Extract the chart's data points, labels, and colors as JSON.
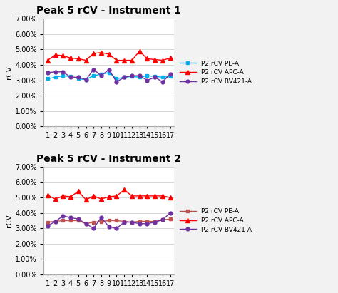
{
  "title1": "Peak 5 rCV - Instrument 1",
  "title2": "Peak 5 rCV - Instrument 2",
  "ylabel": "rCV",
  "x": [
    1,
    2,
    3,
    4,
    5,
    6,
    7,
    8,
    9,
    10,
    11,
    12,
    13,
    14,
    15,
    16,
    17
  ],
  "instrument1": {
    "pe": [
      3.1,
      3.2,
      3.3,
      3.25,
      3.1,
      3.05,
      3.3,
      3.4,
      3.5,
      3.1,
      3.2,
      3.25,
      3.2,
      3.3,
      3.25,
      3.2,
      3.25
    ],
    "apc": [
      4.3,
      4.65,
      4.6,
      4.45,
      4.4,
      4.3,
      4.75,
      4.8,
      4.7,
      4.3,
      4.3,
      4.3,
      4.9,
      4.4,
      4.35,
      4.3,
      4.45
    ],
    "bv421": [
      3.5,
      3.55,
      3.55,
      3.2,
      3.2,
      3.05,
      3.7,
      3.3,
      3.7,
      2.9,
      3.2,
      3.3,
      3.3,
      3.0,
      3.2,
      2.9,
      3.4
    ]
  },
  "instrument2": {
    "pe": [
      3.4,
      3.45,
      3.5,
      3.5,
      3.5,
      3.3,
      3.4,
      3.45,
      3.5,
      3.5,
      3.45,
      3.4,
      3.45,
      3.45,
      3.45,
      3.55,
      3.6
    ],
    "apc": [
      5.15,
      4.9,
      5.1,
      5.05,
      5.4,
      4.85,
      5.1,
      4.9,
      5.05,
      5.1,
      5.5,
      5.1,
      5.1,
      5.1,
      5.1,
      5.1,
      5.0
    ],
    "bv421": [
      3.15,
      3.45,
      3.8,
      3.7,
      3.6,
      3.3,
      3.0,
      3.7,
      3.1,
      3.0,
      3.4,
      3.4,
      3.3,
      3.3,
      3.4,
      3.55,
      4.0
    ]
  },
  "color_pe1": "#00B0F0",
  "color_pe2": "#C0504D",
  "color_apc": "#FF0000",
  "color_bv421": "#7030A0",
  "legend_labels": [
    "P2 rCV PE-A",
    "P2 rCV APC-A",
    "P2 rCV BV421-A"
  ],
  "bg_color": "#F2F2F2",
  "plot_bg": "#FFFFFF",
  "title_fontsize": 10,
  "label_fontsize": 7.5,
  "tick_fontsize": 7,
  "legend_fontsize": 6.5
}
